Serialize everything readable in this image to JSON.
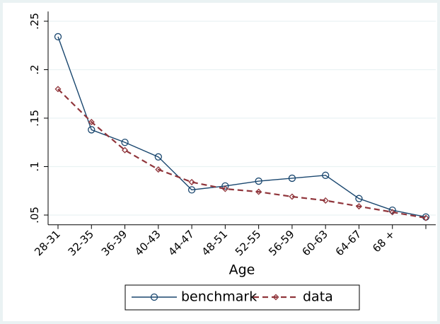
{
  "chart_data": {
    "type": "line",
    "xlabel": "Age",
    "categories": [
      "28-31",
      "32-35",
      "36-39",
      "40-43",
      "44-47",
      "48-51",
      "52-55",
      "56-59",
      "60-63",
      "64-67",
      "68 +",
      null
    ],
    "series": [
      {
        "name": "benchmark",
        "color": "#1a476f",
        "dash": false,
        "marker": "circle",
        "values": [
          0.234,
          0.138,
          0.125,
          0.11,
          0.076,
          0.08,
          0.085,
          0.088,
          0.091,
          0.067,
          0.055,
          0.048
        ]
      },
      {
        "name": "data",
        "color": "#90353b",
        "dash": true,
        "marker": "diamond",
        "values": [
          0.18,
          0.146,
          0.117,
          0.097,
          0.084,
          0.077,
          0.074,
          0.069,
          0.065,
          0.059,
          0.053,
          0.047
        ]
      }
    ],
    "ylim": [
      0.04,
      0.26
    ],
    "yticks": [
      {
        "value": 0.05,
        "label": ".05"
      },
      {
        "value": 0.1,
        "label": ".1"
      },
      {
        "value": 0.15,
        "label": ".15"
      },
      {
        "value": 0.2,
        "label": ".2"
      },
      {
        "value": 0.25,
        "label": ".25"
      }
    ],
    "grid": true
  }
}
